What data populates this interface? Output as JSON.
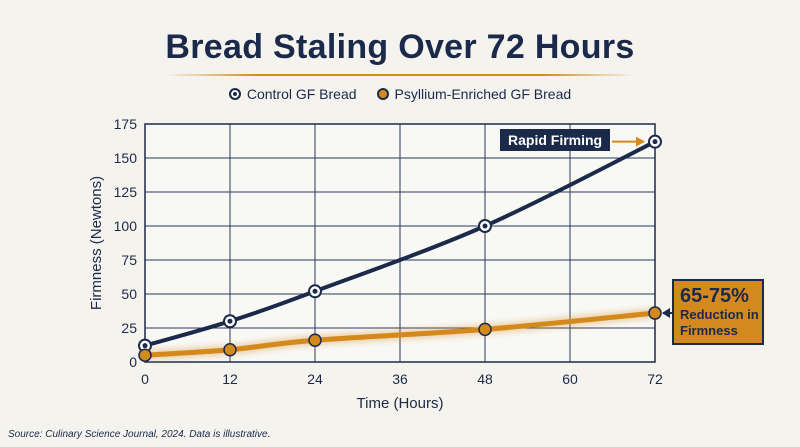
{
  "title": "Bread Staling Over 72 Hours",
  "legend": {
    "control_label": "Control GF Bread",
    "psyllium_label": "Psyllium-Enriched GF Bread"
  },
  "annotations": {
    "rapid": "Rapid Firming",
    "reduction_big": "65-75%",
    "reduction_small": "Reduction in Firmness"
  },
  "source": "Source: Culinary Science Journal, 2024. Data is illustrative.",
  "colors": {
    "background": "#f4f3ee",
    "navy": "#1b2a4a",
    "orange": "#d4891c",
    "grid": "#2a3a5c"
  },
  "chart_data": {
    "type": "line",
    "title": "Bread Staling Over 72 Hours",
    "xlabel": "Time (Hours)",
    "ylabel": "Firmness (Newtons)",
    "xlim": [
      0,
      72
    ],
    "ylim": [
      0,
      175
    ],
    "xticks": [
      0,
      12,
      24,
      36,
      48,
      60,
      72
    ],
    "yticks": [
      0,
      25,
      50,
      75,
      100,
      125,
      150,
      175
    ],
    "grid": true,
    "legend_position": "top-center",
    "series": [
      {
        "name": "Control GF Bread",
        "color": "#1b2a4a",
        "x": [
          0,
          12,
          24,
          48,
          72
        ],
        "y": [
          12,
          30,
          52,
          100,
          162
        ]
      },
      {
        "name": "Psyllium-Enriched GF Bread",
        "color": "#d4891c",
        "x": [
          0,
          12,
          24,
          48,
          72
        ],
        "y": [
          5,
          9,
          16,
          24,
          36
        ]
      }
    ]
  }
}
